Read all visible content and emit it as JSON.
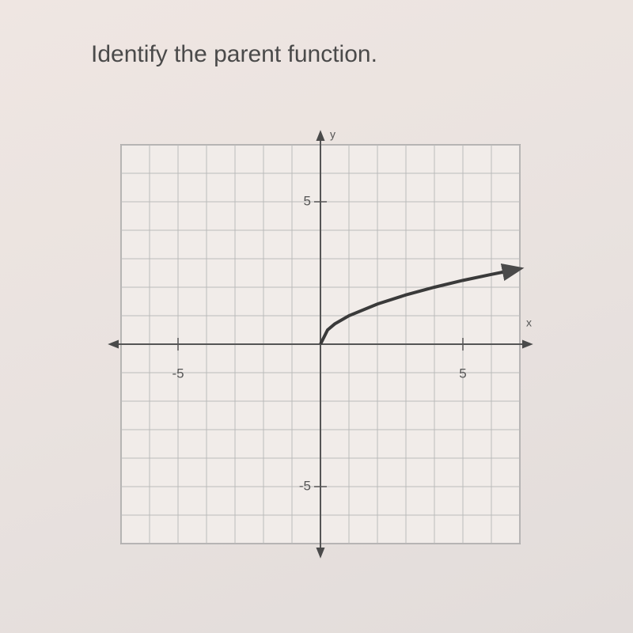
{
  "chart_data": {
    "type": "line",
    "title": "Identify the parent function.",
    "x_label": "x",
    "y_label": "y",
    "x": [
      0,
      0.25,
      0.5,
      1,
      2,
      3,
      4,
      5,
      6,
      7
    ],
    "values": [
      0,
      0.5,
      0.71,
      1,
      1.41,
      1.73,
      2,
      2.24,
      2.45,
      2.65
    ],
    "color": "#3a3a3a",
    "xlim": [
      -7,
      7
    ],
    "ylim": [
      -7,
      7
    ],
    "xticks": [
      -5,
      5
    ],
    "yticks": [
      -5,
      5
    ],
    "grid": true
  }
}
